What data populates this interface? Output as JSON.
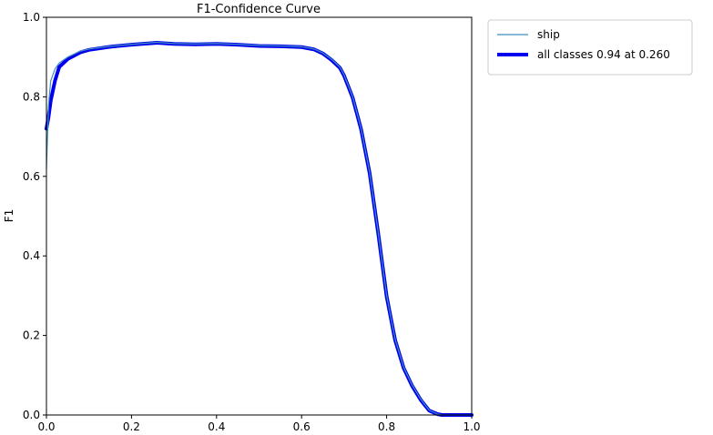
{
  "chart_data": {
    "type": "line",
    "title": "F1-Confidence Curve",
    "xlabel": "",
    "ylabel": "F1",
    "xlim": [
      0.0,
      1.0
    ],
    "ylim": [
      0.0,
      1.0
    ],
    "xticks": [
      "0.0",
      "0.2",
      "0.4",
      "0.6",
      "0.8",
      "1.0"
    ],
    "yticks": [
      "0.0",
      "0.2",
      "0.4",
      "0.6",
      "0.8",
      "1.0"
    ],
    "grid": false,
    "legend_position": "outside-top-right",
    "series": [
      {
        "name": "ship",
        "color": "#3f8fbf",
        "width": "thin",
        "x": [
          0.0,
          0.005,
          0.01,
          0.02,
          0.03,
          0.05,
          0.08,
          0.1,
          0.15,
          0.2,
          0.26,
          0.3,
          0.35,
          0.4,
          0.45,
          0.5,
          0.55,
          0.6,
          0.63,
          0.65,
          0.67,
          0.69,
          0.7,
          0.72,
          0.74,
          0.76,
          0.78,
          0.8,
          0.82,
          0.84,
          0.86,
          0.88,
          0.9,
          0.92,
          0.93,
          0.94,
          0.96,
          1.0
        ],
        "y": [
          0.62,
          0.78,
          0.84,
          0.87,
          0.885,
          0.9,
          0.915,
          0.92,
          0.927,
          0.932,
          0.937,
          0.934,
          0.933,
          0.934,
          0.932,
          0.929,
          0.928,
          0.926,
          0.92,
          0.91,
          0.895,
          0.875,
          0.855,
          0.8,
          0.72,
          0.61,
          0.46,
          0.3,
          0.19,
          0.12,
          0.075,
          0.04,
          0.012,
          0.002,
          0.0,
          0.0,
          0.0,
          0.0
        ]
      },
      {
        "name": "all classes 0.94 at 0.260",
        "color": "#0000ee",
        "width": "thick",
        "x": [
          0.0,
          0.005,
          0.01,
          0.02,
          0.03,
          0.05,
          0.08,
          0.1,
          0.15,
          0.2,
          0.26,
          0.3,
          0.35,
          0.4,
          0.45,
          0.5,
          0.55,
          0.6,
          0.63,
          0.65,
          0.67,
          0.69,
          0.7,
          0.72,
          0.74,
          0.76,
          0.78,
          0.8,
          0.82,
          0.84,
          0.86,
          0.88,
          0.9,
          0.92,
          0.93,
          0.94,
          0.96,
          1.0
        ],
        "y": [
          0.72,
          0.75,
          0.79,
          0.84,
          0.875,
          0.895,
          0.912,
          0.918,
          0.926,
          0.931,
          0.936,
          0.933,
          0.932,
          0.933,
          0.931,
          0.928,
          0.927,
          0.925,
          0.919,
          0.909,
          0.893,
          0.873,
          0.853,
          0.798,
          0.718,
          0.608,
          0.458,
          0.298,
          0.188,
          0.118,
          0.073,
          0.038,
          0.011,
          0.002,
          0.0,
          0.0,
          0.0,
          0.0
        ]
      }
    ]
  }
}
